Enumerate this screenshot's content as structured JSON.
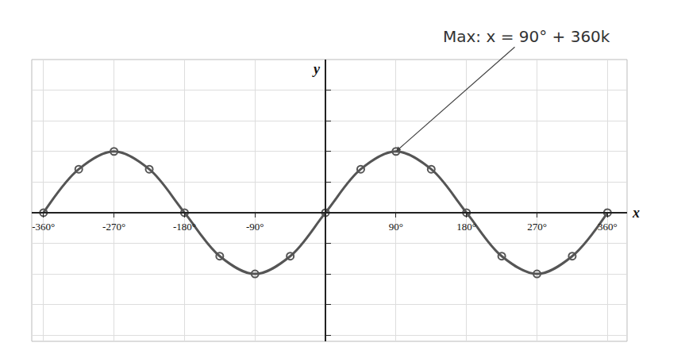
{
  "chart_data": {
    "type": "line",
    "xlabel": "x",
    "ylabel": "y",
    "annotations": [
      {
        "text": "Max: x = 90° + 360k",
        "x": 90,
        "y": 1
      }
    ],
    "x": [
      -360,
      -315,
      -270,
      -225,
      -180,
      -135,
      -90,
      -45,
      0,
      45,
      90,
      135,
      180,
      225,
      270,
      315,
      360
    ],
    "series": [
      {
        "color": "#555555",
        "marker": "circle-open",
        "line_style": "solid",
        "values": [
          0,
          0.71,
          1,
          0.71,
          0,
          -0.71,
          -1,
          -0.71,
          0,
          0.71,
          1,
          0.71,
          0,
          -0.71,
          -1,
          -0.71,
          0
        ]
      }
    ],
    "xlim": [
      -375,
      385
    ],
    "ylim": [
      -2.1,
      2.5
    ],
    "xticks": [
      {
        "value": -360,
        "label": "-360°"
      },
      {
        "value": -270,
        "label": "-270°"
      },
      {
        "value": -180,
        "label": "-180°"
      },
      {
        "value": -90,
        "label": "-90°"
      },
      {
        "value": 90,
        "label": "90°"
      },
      {
        "value": 180,
        "label": "180°"
      },
      {
        "value": 270,
        "label": "270°"
      },
      {
        "value": 360,
        "label": "360°"
      }
    ],
    "yticks": [
      -2,
      -1.5,
      -1,
      -0.5,
      0,
      0.5,
      1,
      1.5,
      2,
      2.5
    ],
    "grid": true,
    "tick_labels": "x"
  }
}
